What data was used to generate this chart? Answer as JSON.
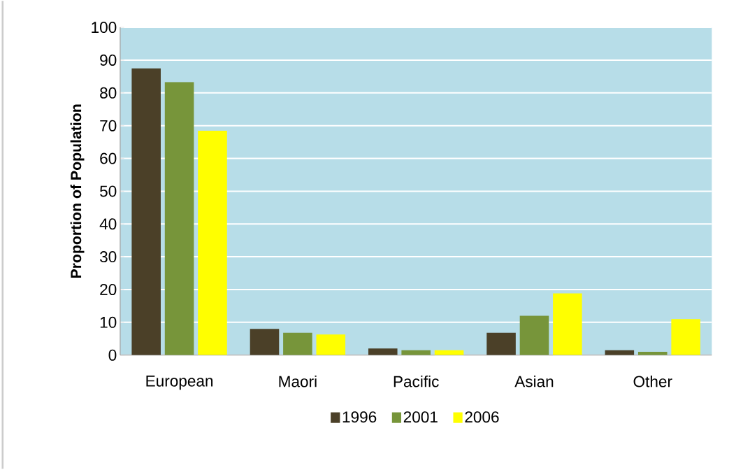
{
  "chart_data": {
    "type": "bar",
    "ylabel": "Proportion of Population",
    "categories": [
      "European",
      "Maori",
      "Pacific",
      "Asian",
      "Other"
    ],
    "series": [
      {
        "name": "1996",
        "color": "#4b4028",
        "values": [
          87.5,
          8,
          2,
          6.8,
          1.5
        ]
      },
      {
        "name": "2001",
        "color": "#77953a",
        "values": [
          83.3,
          6.8,
          1.5,
          12,
          1
        ]
      },
      {
        "name": "2006",
        "color": "#ffff00",
        "values": [
          68.5,
          6.3,
          1.5,
          18.8,
          11
        ]
      }
    ],
    "ylim": [
      0,
      100
    ],
    "yticks": [
      0,
      10,
      20,
      30,
      40,
      50,
      60,
      70,
      80,
      90,
      100
    ],
    "grid": "y",
    "legend": "bottom"
  }
}
